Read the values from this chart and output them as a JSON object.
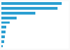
{
  "values": [
    1700,
    1580,
    950,
    430,
    240,
    130,
    115,
    100,
    85,
    40
  ],
  "bar_color": "#2B9FD1",
  "background_color": "#f9f9f9",
  "panel_color": "#ffffff",
  "xlim": [
    0,
    1900
  ],
  "figsize": [
    1.0,
    0.71
  ],
  "dpi": 100,
  "bar_height": 0.55
}
